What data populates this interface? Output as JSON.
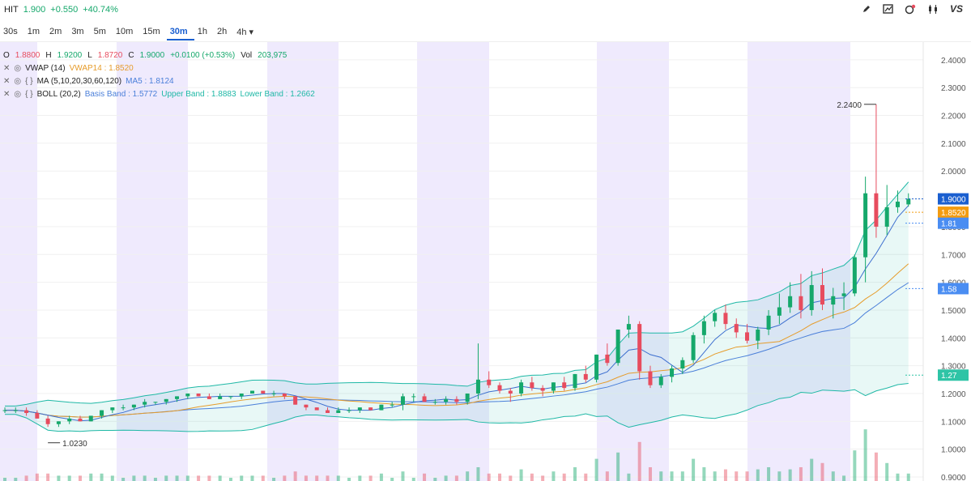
{
  "header": {
    "symbol": "HIT",
    "price": "1.900",
    "change": "+0.550",
    "change_pct": "+40.74%"
  },
  "toolbar": {
    "icons": [
      "pen-icon",
      "chart-type-icon",
      "indicator-icon",
      "candle-icon",
      "compare-icon"
    ],
    "compare_label": "VS"
  },
  "intervals": {
    "items": [
      "30s",
      "1m",
      "2m",
      "3m",
      "5m",
      "10m",
      "15m",
      "30m",
      "1h",
      "2h",
      "4h"
    ],
    "active": "30m",
    "dropdown_suffix": "▾"
  },
  "legend": {
    "ohlc": {
      "o_label": "O",
      "o": "1.8800",
      "h_label": "H",
      "h": "1.9200",
      "l_label": "L",
      "l": "1.8720",
      "c_label": "C",
      "c": "1.9000",
      "change": "+0.0100 (+0.53%)",
      "vol_label": "Vol",
      "vol": "203,975"
    },
    "vwap": {
      "name": "VWAP (14)",
      "value": "VWAP14 : 1.8520"
    },
    "ma": {
      "name": "MA (5,10,20,30,60,120)",
      "value": "MA5 : 1.8124"
    },
    "boll": {
      "name": "BOLL (20,2)",
      "basis": "Basis Band : 1.5772",
      "upper": "Upper Band : 1.8883",
      "lower": "Lower Band : 1.2662"
    },
    "close_glyph": "✕",
    "eye_glyph": "◎",
    "settings_glyph": "{ }"
  },
  "colors": {
    "up": "#15a86b",
    "down": "#e74c5e",
    "vwap": "#e69c2b",
    "ma5": "#4a7fd9",
    "boll": "#1fb8a6",
    "session_shade": "#efeafd"
  },
  "chart_data": {
    "type": "candlestick",
    "title": "",
    "interval": "30m",
    "y_ticks": [
      "2.4000",
      "2.3000",
      "2.2000",
      "2.1000",
      "2.0000",
      "1.9000",
      "1.8000",
      "1.7000",
      "1.6000",
      "1.5000",
      "1.4000",
      "1.3000",
      "1.2000",
      "1.1000",
      "1.0000",
      "0.9000"
    ],
    "ylim": [
      0.9,
      2.42
    ],
    "annotations": {
      "high": "2.2400",
      "low": "1.0230"
    },
    "price_tags": [
      {
        "label": "1.9000",
        "value": 1.9,
        "color": "#1a5fd0"
      },
      {
        "label": "1.8520",
        "value": 1.852,
        "color": "#f39c12"
      },
      {
        "label": "1.81",
        "value": 1.8124,
        "color": "#4a8df2"
      },
      {
        "label": "1.58",
        "value": 1.5772,
        "color": "#4a8df2"
      },
      {
        "label": "1.27",
        "value": 1.2662,
        "color": "#2ec4a6"
      }
    ],
    "candles": [
      [
        1.14,
        1.15,
        1.13,
        1.14
      ],
      [
        1.14,
        1.15,
        1.13,
        1.14
      ],
      [
        1.14,
        1.15,
        1.12,
        1.13
      ],
      [
        1.13,
        1.14,
        1.11,
        1.11
      ],
      [
        1.11,
        1.12,
        1.08,
        1.09
      ],
      [
        1.09,
        1.1,
        1.08,
        1.1
      ],
      [
        1.1,
        1.12,
        1.09,
        1.11
      ],
      [
        1.11,
        1.12,
        1.1,
        1.1
      ],
      [
        1.1,
        1.12,
        1.1,
        1.12
      ],
      [
        1.12,
        1.14,
        1.11,
        1.14
      ],
      [
        1.14,
        1.15,
        1.13,
        1.15
      ],
      [
        1.15,
        1.16,
        1.14,
        1.15
      ],
      [
        1.15,
        1.16,
        1.14,
        1.16
      ],
      [
        1.16,
        1.18,
        1.15,
        1.17
      ],
      [
        1.17,
        1.17,
        1.16,
        1.17
      ],
      [
        1.17,
        1.18,
        1.16,
        1.18
      ],
      [
        1.18,
        1.19,
        1.17,
        1.19
      ],
      [
        1.19,
        1.2,
        1.18,
        1.2
      ],
      [
        1.2,
        1.2,
        1.19,
        1.19
      ],
      [
        1.19,
        1.2,
        1.18,
        1.18
      ],
      [
        1.18,
        1.2,
        1.18,
        1.19
      ],
      [
        1.19,
        1.19,
        1.18,
        1.19
      ],
      [
        1.19,
        1.2,
        1.18,
        1.2
      ],
      [
        1.2,
        1.21,
        1.2,
        1.21
      ],
      [
        1.21,
        1.21,
        1.2,
        1.2
      ],
      [
        1.2,
        1.21,
        1.19,
        1.2
      ],
      [
        1.2,
        1.2,
        1.18,
        1.19
      ],
      [
        1.19,
        1.19,
        1.16,
        1.16
      ],
      [
        1.16,
        1.16,
        1.14,
        1.15
      ],
      [
        1.15,
        1.15,
        1.14,
        1.14
      ],
      [
        1.14,
        1.15,
        1.13,
        1.13
      ],
      [
        1.13,
        1.15,
        1.13,
        1.14
      ],
      [
        1.14,
        1.15,
        1.13,
        1.14
      ],
      [
        1.14,
        1.15,
        1.13,
        1.15
      ],
      [
        1.15,
        1.15,
        1.14,
        1.14
      ],
      [
        1.14,
        1.16,
        1.14,
        1.16
      ],
      [
        1.16,
        1.17,
        1.15,
        1.16
      ],
      [
        1.16,
        1.2,
        1.14,
        1.19
      ],
      [
        1.19,
        1.2,
        1.17,
        1.19
      ],
      [
        1.19,
        1.2,
        1.17,
        1.17
      ],
      [
        1.17,
        1.18,
        1.16,
        1.17
      ],
      [
        1.17,
        1.19,
        1.16,
        1.18
      ],
      [
        1.18,
        1.19,
        1.16,
        1.17
      ],
      [
        1.17,
        1.2,
        1.16,
        1.2
      ],
      [
        1.2,
        1.38,
        1.18,
        1.25
      ],
      [
        1.25,
        1.28,
        1.22,
        1.23
      ],
      [
        1.23,
        1.24,
        1.2,
        1.21
      ],
      [
        1.21,
        1.22,
        1.17,
        1.2
      ],
      [
        1.2,
        1.25,
        1.19,
        1.24
      ],
      [
        1.24,
        1.26,
        1.21,
        1.22
      ],
      [
        1.22,
        1.23,
        1.19,
        1.21
      ],
      [
        1.21,
        1.24,
        1.2,
        1.24
      ],
      [
        1.24,
        1.26,
        1.21,
        1.22
      ],
      [
        1.22,
        1.27,
        1.21,
        1.27
      ],
      [
        1.27,
        1.3,
        1.24,
        1.25
      ],
      [
        1.25,
        1.34,
        1.24,
        1.34
      ],
      [
        1.34,
        1.38,
        1.3,
        1.31
      ],
      [
        1.31,
        1.43,
        1.3,
        1.43
      ],
      [
        1.43,
        1.48,
        1.4,
        1.45
      ],
      [
        1.45,
        1.46,
        1.25,
        1.28
      ],
      [
        1.28,
        1.3,
        1.22,
        1.23
      ],
      [
        1.23,
        1.27,
        1.22,
        1.26
      ],
      [
        1.26,
        1.3,
        1.24,
        1.29
      ],
      [
        1.29,
        1.33,
        1.27,
        1.32
      ],
      [
        1.32,
        1.42,
        1.31,
        1.41
      ],
      [
        1.41,
        1.48,
        1.38,
        1.46
      ],
      [
        1.46,
        1.5,
        1.44,
        1.49
      ],
      [
        1.49,
        1.52,
        1.43,
        1.45
      ],
      [
        1.45,
        1.47,
        1.4,
        1.42
      ],
      [
        1.42,
        1.45,
        1.38,
        1.39
      ],
      [
        1.39,
        1.44,
        1.36,
        1.43
      ],
      [
        1.43,
        1.5,
        1.41,
        1.48
      ],
      [
        1.48,
        1.56,
        1.45,
        1.51
      ],
      [
        1.51,
        1.6,
        1.49,
        1.55
      ],
      [
        1.55,
        1.63,
        1.47,
        1.5
      ],
      [
        1.5,
        1.64,
        1.48,
        1.59
      ],
      [
        1.59,
        1.65,
        1.5,
        1.52
      ],
      [
        1.52,
        1.58,
        1.47,
        1.55
      ],
      [
        1.55,
        1.6,
        1.5,
        1.56
      ],
      [
        1.56,
        1.7,
        1.55,
        1.69
      ],
      [
        1.69,
        1.98,
        1.6,
        1.92
      ],
      [
        1.92,
        2.24,
        1.76,
        1.8
      ],
      [
        1.8,
        1.95,
        1.77,
        1.87
      ],
      [
        1.87,
        1.93,
        1.85,
        1.89
      ],
      [
        1.88,
        1.92,
        1.872,
        1.9
      ]
    ]
  }
}
